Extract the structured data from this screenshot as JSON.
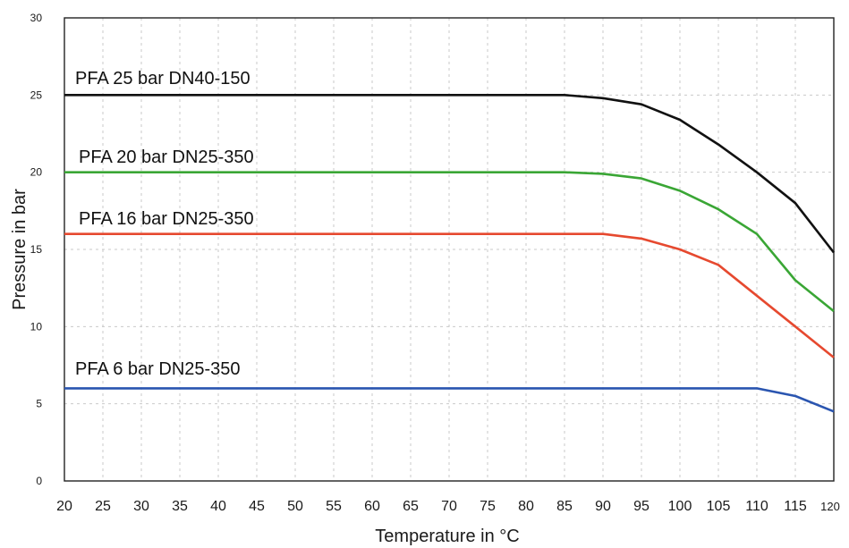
{
  "chart_data": {
    "type": "line",
    "title": "",
    "xlabel": "Temperature in  °C",
    "ylabel": "Pressure in bar",
    "xlim": [
      20,
      120
    ],
    "ylim": [
      0,
      30
    ],
    "grid": true,
    "x_ticks": [
      "20",
      "25",
      "30",
      "35",
      "40",
      "45",
      "50",
      "55",
      "60",
      "65",
      "70",
      "75",
      "80",
      "85",
      "90",
      "95",
      "100",
      "105",
      "110",
      "115",
      "120"
    ],
    "y_ticks": [
      "0",
      "5",
      "10",
      "15",
      "20",
      "25",
      "30"
    ],
    "series": [
      {
        "name": "PFA 25 bar DN40-150",
        "color": "#111111",
        "x": [
          20,
          85,
          90,
          95,
          100,
          105,
          110,
          115,
          120
        ],
        "y": [
          25,
          25,
          24.8,
          24.4,
          23.4,
          21.8,
          20,
          18,
          14.8
        ]
      },
      {
        "name": "PFA 20 bar DN25-350",
        "color": "#3aa635",
        "x": [
          20,
          85,
          90,
          95,
          100,
          105,
          110,
          115,
          120
        ],
        "y": [
          20,
          20,
          19.9,
          19.6,
          18.8,
          17.6,
          16,
          13,
          11
        ]
      },
      {
        "name": "PFA 16 bar DN25-350",
        "color": "#e6492f",
        "x": [
          20,
          85,
          90,
          95,
          100,
          105,
          110,
          115,
          120
        ],
        "y": [
          16,
          16,
          16,
          15.7,
          15,
          14,
          12,
          10,
          8
        ]
      },
      {
        "name": "PFA 6 bar DN25-350",
        "color": "#2a55b0",
        "x": [
          20,
          85,
          90,
          95,
          100,
          105,
          110,
          115,
          120
        ],
        "y": [
          6,
          6,
          6,
          6,
          6,
          6,
          6,
          5.5,
          4.5
        ]
      }
    ]
  }
}
